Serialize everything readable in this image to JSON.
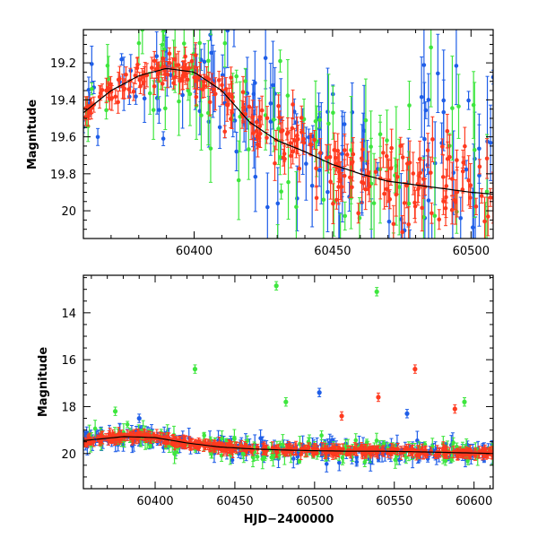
{
  "chart_data": [
    {
      "type": "scatter",
      "title": "",
      "xlabel": "",
      "ylabel": "Magnitude",
      "xlim": [
        60360,
        60508
      ],
      "ylim": [
        20.15,
        19.02
      ],
      "y_inverted": true,
      "x_ticks": [
        60400,
        60450,
        60500
      ],
      "y_ticks": [
        19.2,
        19.4,
        19.6,
        19.8,
        20
      ],
      "y_tick_labels": [
        "19.2",
        "19.4",
        "19.6",
        "19.8",
        "20"
      ],
      "error_bars": true,
      "fit_curve": {
        "color": "#000000",
        "x": [
          60360,
          60370,
          60380,
          60390,
          60400,
          60410,
          60420,
          60430,
          60440,
          60450,
          60460,
          60470,
          60480,
          60490,
          60500,
          60508
        ],
        "y": [
          19.47,
          19.35,
          19.27,
          19.23,
          19.25,
          19.35,
          19.52,
          19.62,
          19.68,
          19.75,
          19.8,
          19.84,
          19.86,
          19.88,
          19.9,
          19.91
        ]
      },
      "series": [
        {
          "color": "#1f5ee8",
          "scatter_mag": 0.35
        },
        {
          "color": "#3ee63e",
          "scatter_mag": 0.45
        },
        {
          "color": "#ff3a1f",
          "scatter_mag": 0.12
        }
      ]
    },
    {
      "type": "scatter",
      "title": "",
      "xlabel": "HJD−2400000",
      "ylabel": "Magnitude",
      "xlim": [
        60355,
        60612
      ],
      "ylim": [
        21.5,
        12.4
      ],
      "y_inverted": true,
      "x_ticks": [
        60400,
        60450,
        60500,
        60550,
        60600
      ],
      "y_ticks": [
        14,
        16,
        18,
        20
      ],
      "y_tick_labels": [
        "14",
        "16",
        "18",
        "20"
      ],
      "error_bars": true,
      "fit_curve": {
        "color": "#000000",
        "x": [
          60355,
          60380,
          60400,
          60420,
          60440,
          60460,
          60480,
          60500,
          60520,
          60540,
          60560,
          60580,
          60600,
          60612
        ],
        "y": [
          19.45,
          19.28,
          19.32,
          19.55,
          19.72,
          19.8,
          19.85,
          19.88,
          19.9,
          19.9,
          19.92,
          19.95,
          19.98,
          20.0
        ]
      },
      "outliers": [
        {
          "x": 60476,
          "y": 12.85,
          "series": 1
        },
        {
          "x": 60539,
          "y": 13.1,
          "series": 1
        },
        {
          "x": 60425,
          "y": 16.4,
          "series": 1
        },
        {
          "x": 60563,
          "y": 16.4,
          "series": 2
        },
        {
          "x": 60503,
          "y": 17.4,
          "series": 0
        },
        {
          "x": 60540,
          "y": 17.6,
          "series": 2
        },
        {
          "x": 60390,
          "y": 18.5,
          "series": 0
        },
        {
          "x": 60375,
          "y": 18.2,
          "series": 1
        },
        {
          "x": 60482,
          "y": 17.8,
          "series": 1
        },
        {
          "x": 60594,
          "y": 17.8,
          "series": 1
        },
        {
          "x": 60588,
          "y": 18.1,
          "series": 2
        },
        {
          "x": 60517,
          "y": 18.4,
          "series": 2
        },
        {
          "x": 60558,
          "y": 18.3,
          "series": 0
        }
      ],
      "series": [
        {
          "color": "#1f5ee8",
          "scatter_mag": 0.35
        },
        {
          "color": "#3ee63e",
          "scatter_mag": 0.45
        },
        {
          "color": "#ff3a1f",
          "scatter_mag": 0.15
        }
      ]
    }
  ]
}
